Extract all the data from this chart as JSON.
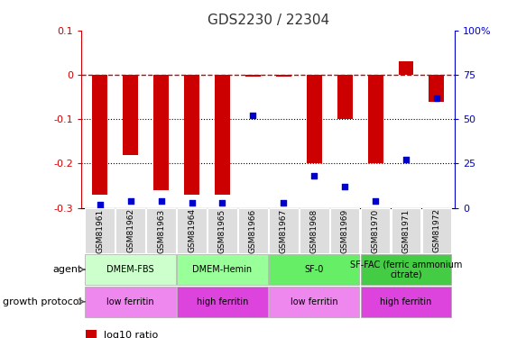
{
  "title": "GDS2230 / 22304",
  "title_color": "#333333",
  "samples": [
    "GSM81961",
    "GSM81962",
    "GSM81963",
    "GSM81964",
    "GSM81965",
    "GSM81966",
    "GSM81967",
    "GSM81968",
    "GSM81969",
    "GSM81970",
    "GSM81971",
    "GSM81972"
  ],
  "log10_ratio": [
    -0.27,
    -0.18,
    -0.26,
    -0.27,
    -0.27,
    -0.005,
    -0.005,
    -0.2,
    -0.1,
    -0.2,
    0.03,
    -0.06
  ],
  "percentile_rank": [
    2,
    4,
    4,
    3,
    3,
    52,
    3,
    18,
    12,
    4,
    27,
    62
  ],
  "ylim_left": [
    -0.3,
    0.1
  ],
  "ylim_right": [
    0,
    100
  ],
  "yticks_left": [
    -0.3,
    -0.2,
    -0.1,
    0.0,
    0.1
  ],
  "yticks_right": [
    0,
    25,
    50,
    75,
    100
  ],
  "ytick_labels_left": [
    "-0.3",
    "-0.2",
    "-0.1",
    "0",
    "0.1"
  ],
  "ytick_labels_right": [
    "0",
    "25",
    "50",
    "75",
    "100%"
  ],
  "hline_y": 0,
  "dotted_lines": [
    -0.1,
    -0.2
  ],
  "bar_color": "#cc0000",
  "dot_color": "#0000cc",
  "bar_width": 0.5,
  "agent_labels": [
    {
      "label": "DMEM-FBS",
      "start": 0,
      "end": 2,
      "color": "#ccffcc"
    },
    {
      "label": "DMEM-Hemin",
      "start": 3,
      "end": 5,
      "color": "#99ff99"
    },
    {
      "label": "SF-0",
      "start": 6,
      "end": 8,
      "color": "#66ee66"
    },
    {
      "label": "SF-FAC (ferric ammonium\ncitrate)",
      "start": 9,
      "end": 11,
      "color": "#44cc44"
    }
  ],
  "growth_labels": [
    {
      "label": "low ferritin",
      "start": 0,
      "end": 2,
      "color": "#ee88ee"
    },
    {
      "label": "high ferritin",
      "start": 3,
      "end": 5,
      "color": "#dd44dd"
    },
    {
      "label": "low ferritin",
      "start": 6,
      "end": 8,
      "color": "#ee88ee"
    },
    {
      "label": "high ferritin",
      "start": 9,
      "end": 11,
      "color": "#dd44dd"
    }
  ],
  "left_axis_color": "#cc0000",
  "right_axis_color": "#0000cc",
  "sample_box_color": "#dddddd",
  "fig_width": 5.83,
  "fig_height": 3.75,
  "fig_dpi": 100
}
